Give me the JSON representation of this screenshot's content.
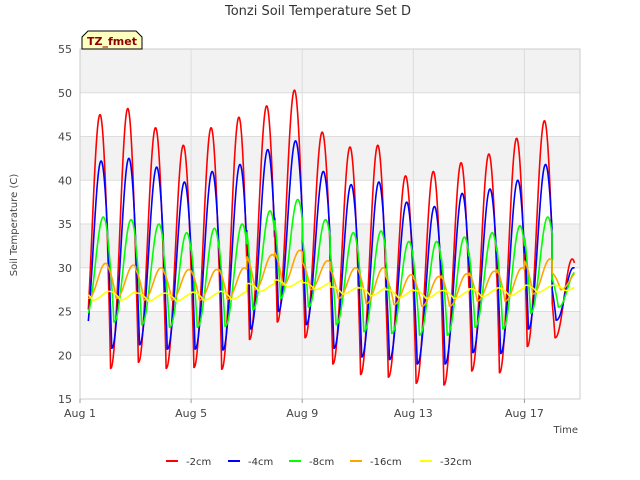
{
  "chart_data": {
    "type": "line",
    "title": "Tonzi Soil Temperature Set D",
    "xlabel": "Time",
    "ylabel": "Soil Temperature (C)",
    "badge": "TZ_fmet",
    "ylim": [
      15,
      55
    ],
    "yticks": [
      15,
      20,
      25,
      30,
      35,
      40,
      45,
      50,
      55
    ],
    "xlim": [
      1.0,
      19.0
    ],
    "xticks": [
      {
        "value": 1,
        "label": "Aug 1"
      },
      {
        "value": 5,
        "label": "Aug 5"
      },
      {
        "value": 9,
        "label": "Aug 9"
      },
      {
        "value": 13,
        "label": "Aug 13"
      },
      {
        "value": 17,
        "label": "Aug 17"
      }
    ],
    "grid": true,
    "legend_position": "bottom",
    "day_start": 1.3,
    "day_end": 18.8,
    "series": [
      {
        "name": "-2cm",
        "color": "#ff0000",
        "phase": 0.1,
        "mins": [
          19.5,
          18.5,
          19.2,
          18.5,
          18.6,
          18.4,
          21.8,
          23.8,
          22.0,
          19.0,
          17.8,
          17.5,
          16.8,
          16.6,
          18.2,
          18.0,
          21.0,
          22.0
        ],
        "maxs": [
          47.5,
          48.2,
          46.0,
          44.0,
          46.0,
          47.2,
          48.5,
          50.3,
          45.5,
          43.8,
          44.0,
          40.5,
          41.0,
          42.0,
          43.0,
          44.8,
          46.8,
          31.0
        ]
      },
      {
        "name": "-4cm",
        "color": "#0000ff",
        "phase": 0.14,
        "mins": [
          21.2,
          20.8,
          21.2,
          20.7,
          20.7,
          20.6,
          23.0,
          25.0,
          23.5,
          20.8,
          19.8,
          19.5,
          19.0,
          19.0,
          20.3,
          20.2,
          23.0,
          24.0
        ],
        "maxs": [
          42.2,
          42.5,
          41.5,
          39.8,
          41.0,
          41.8,
          43.5,
          44.5,
          41.0,
          39.5,
          39.8,
          37.5,
          37.0,
          38.5,
          39.0,
          40.0,
          41.8,
          30.0
        ]
      },
      {
        "name": "-8cm",
        "color": "#00ff00",
        "phase": 0.22,
        "mins": [
          24.5,
          23.8,
          23.5,
          23.2,
          23.2,
          23.3,
          25.2,
          26.5,
          25.5,
          23.5,
          22.7,
          22.5,
          22.3,
          22.3,
          23.2,
          23.0,
          24.8,
          25.5
        ],
        "maxs": [
          35.8,
          35.5,
          35.0,
          34.0,
          34.5,
          35.0,
          36.5,
          37.8,
          35.5,
          34.0,
          34.2,
          33.0,
          33.0,
          33.5,
          34.0,
          34.8,
          35.8,
          29.5
        ]
      },
      {
        "name": "-16cm",
        "color": "#ffa500",
        "phase": 0.3,
        "mins": [
          26.5,
          26.5,
          26.3,
          26.3,
          26.3,
          26.4,
          27.5,
          28.0,
          27.5,
          26.5,
          25.9,
          25.8,
          25.6,
          25.6,
          26.2,
          26.2,
          27.0,
          27.5
        ],
        "maxs": [
          30.5,
          30.3,
          30.0,
          29.8,
          29.8,
          30.0,
          31.5,
          32.0,
          30.8,
          30.0,
          30.0,
          29.2,
          29.0,
          29.3,
          29.6,
          30.0,
          31.0,
          29.5
        ]
      },
      {
        "name": "-32cm",
        "color": "#ffff00",
        "phase": 0.45,
        "mins": [
          26.3,
          26.3,
          26.2,
          26.2,
          26.3,
          26.4,
          27.3,
          27.8,
          27.5,
          27.0,
          26.8,
          26.6,
          26.5,
          26.5,
          26.7,
          26.8,
          27.2,
          27.4
        ],
        "maxs": [
          27.3,
          27.3,
          27.1,
          27.1,
          27.2,
          27.3,
          28.2,
          28.6,
          28.3,
          27.8,
          27.7,
          27.5,
          27.4,
          27.4,
          27.6,
          27.7,
          28.0,
          28.0
        ]
      }
    ]
  }
}
